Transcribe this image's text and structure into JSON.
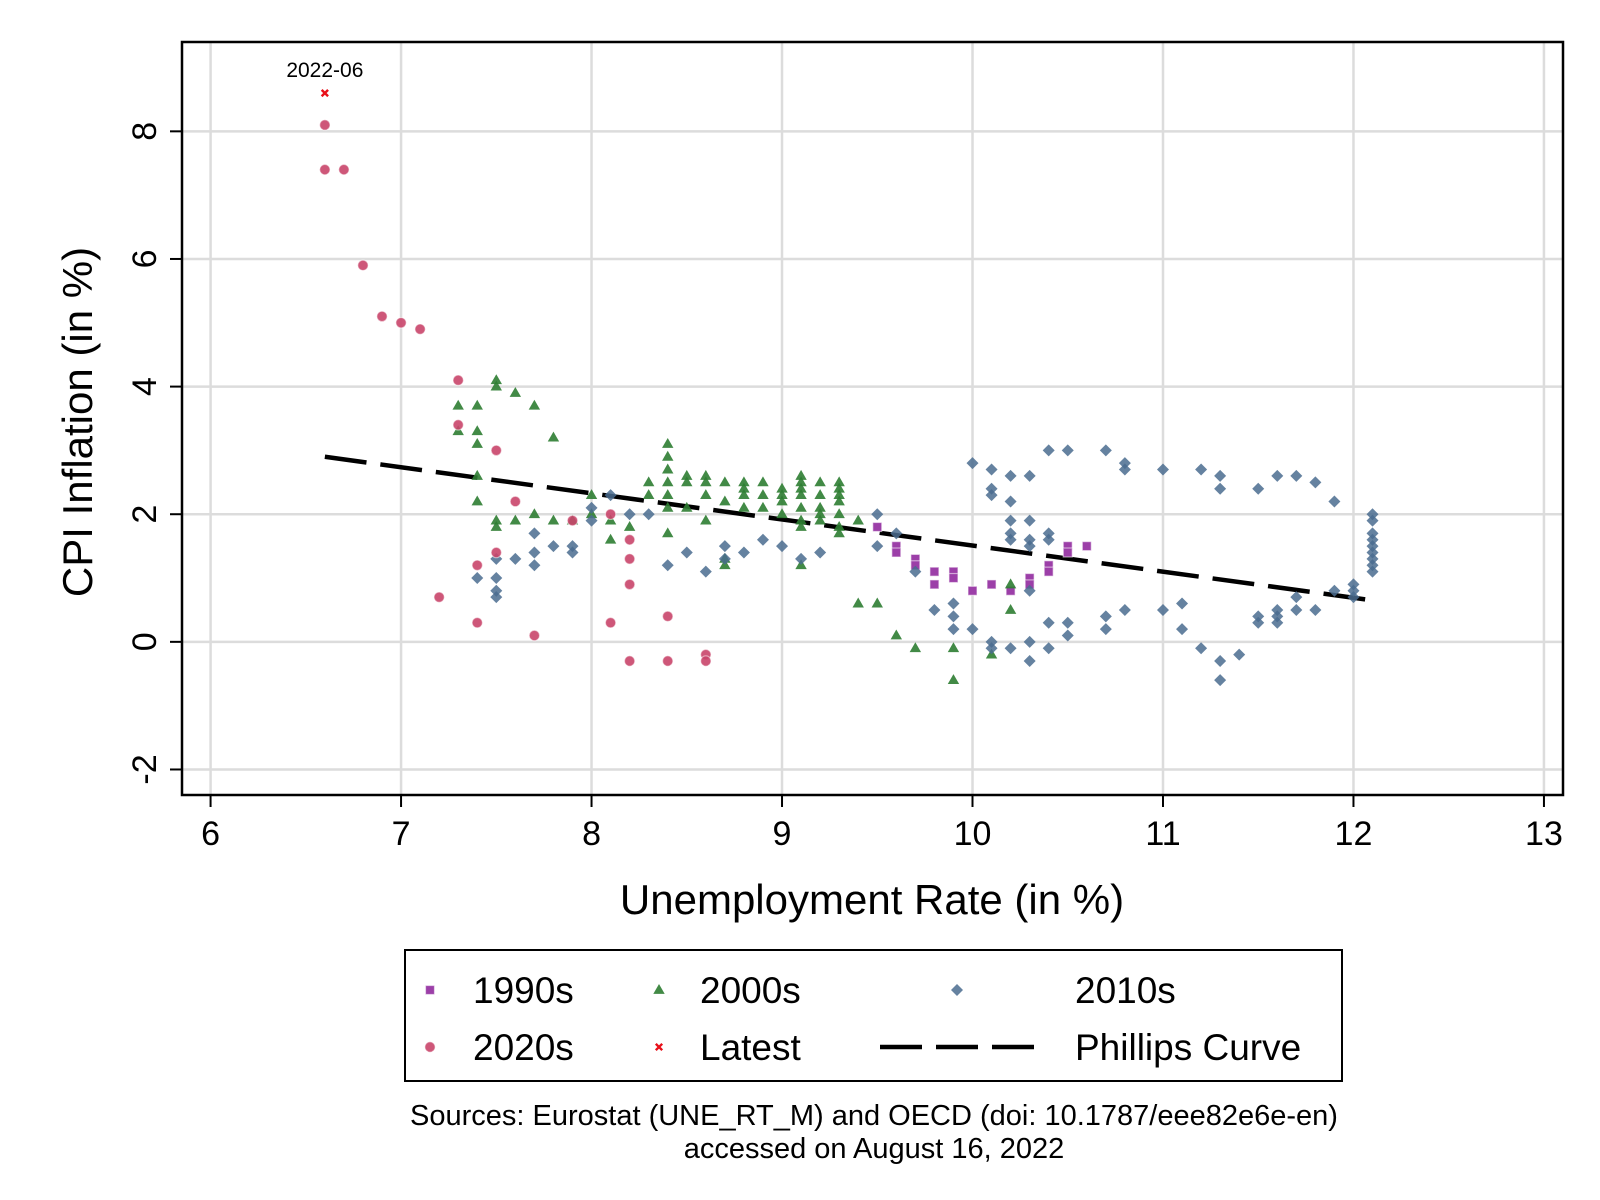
{
  "chart_data": {
    "type": "scatter",
    "title": "",
    "xlabel": "Unemployment Rate (in %)",
    "ylabel": "CPI Inflation (in %)",
    "xlim": [
      5.85,
      13.1
    ],
    "ylim": [
      -2.4,
      9.4
    ],
    "xticks": [
      6,
      7,
      8,
      9,
      10,
      11,
      12,
      13
    ],
    "yticks": [
      -2,
      0,
      2,
      4,
      6,
      8
    ],
    "grid": true,
    "legend": {
      "placement": "bottom",
      "columns": 3
    },
    "annotation": {
      "text": "2022-06",
      "x": 6.6,
      "y": 8.6
    },
    "source_line1": "Sources: Eurostat (UNE_RT_M) and OECD (doi: 10.1787/eee82e6e-en)",
    "source_line2": "accessed on August 16, 2022",
    "series": [
      {
        "name": "1990s",
        "marker": "square",
        "color": "#9c3fa8",
        "points": [
          [
            9.5,
            1.8
          ],
          [
            9.6,
            1.5
          ],
          [
            9.6,
            1.4
          ],
          [
            9.7,
            1.3
          ],
          [
            9.7,
            1.2
          ],
          [
            9.8,
            1.1
          ],
          [
            9.8,
            0.9
          ],
          [
            9.9,
            1.1
          ],
          [
            9.9,
            1.0
          ],
          [
            10.0,
            0.8
          ],
          [
            10.1,
            0.9
          ],
          [
            10.2,
            0.8
          ],
          [
            10.3,
            1.0
          ],
          [
            10.3,
            0.9
          ],
          [
            10.4,
            1.2
          ],
          [
            10.4,
            1.1
          ],
          [
            10.5,
            1.5
          ],
          [
            10.5,
            1.4
          ],
          [
            10.6,
            1.5
          ]
        ]
      },
      {
        "name": "2000s",
        "marker": "triangle",
        "color": "#2e7d32",
        "points": [
          [
            7.3,
            3.7
          ],
          [
            7.3,
            3.3
          ],
          [
            7.4,
            3.7
          ],
          [
            7.4,
            3.3
          ],
          [
            7.4,
            3.1
          ],
          [
            7.4,
            2.6
          ],
          [
            7.4,
            2.2
          ],
          [
            7.5,
            4.1
          ],
          [
            7.5,
            4.0
          ],
          [
            7.5,
            1.9
          ],
          [
            7.5,
            1.8
          ],
          [
            7.6,
            3.9
          ],
          [
            7.6,
            1.9
          ],
          [
            7.7,
            3.7
          ],
          [
            7.7,
            2.0
          ],
          [
            7.8,
            3.2
          ],
          [
            7.8,
            1.9
          ],
          [
            7.9,
            1.9
          ],
          [
            8.0,
            2.3
          ],
          [
            8.0,
            2.0
          ],
          [
            8.1,
            1.9
          ],
          [
            8.1,
            1.6
          ],
          [
            8.2,
            1.8
          ],
          [
            8.3,
            2.5
          ],
          [
            8.3,
            2.3
          ],
          [
            8.4,
            3.1
          ],
          [
            8.4,
            2.9
          ],
          [
            8.4,
            2.7
          ],
          [
            8.4,
            2.5
          ],
          [
            8.4,
            2.3
          ],
          [
            8.4,
            2.1
          ],
          [
            8.4,
            1.7
          ],
          [
            8.5,
            2.6
          ],
          [
            8.5,
            2.5
          ],
          [
            8.5,
            2.1
          ],
          [
            8.6,
            2.6
          ],
          [
            8.6,
            2.5
          ],
          [
            8.6,
            2.3
          ],
          [
            8.6,
            1.9
          ],
          [
            8.7,
            2.5
          ],
          [
            8.7,
            2.2
          ],
          [
            8.7,
            1.3
          ],
          [
            8.7,
            1.2
          ],
          [
            8.8,
            2.5
          ],
          [
            8.8,
            2.4
          ],
          [
            8.8,
            2.3
          ],
          [
            8.8,
            2.1
          ],
          [
            8.9,
            2.5
          ],
          [
            8.9,
            2.3
          ],
          [
            8.9,
            2.1
          ],
          [
            9.0,
            2.4
          ],
          [
            9.0,
            2.3
          ],
          [
            9.0,
            2.2
          ],
          [
            9.0,
            2.0
          ],
          [
            9.1,
            2.6
          ],
          [
            9.1,
            2.5
          ],
          [
            9.1,
            2.4
          ],
          [
            9.1,
            2.3
          ],
          [
            9.1,
            2.1
          ],
          [
            9.1,
            1.9
          ],
          [
            9.1,
            1.8
          ],
          [
            9.1,
            1.2
          ],
          [
            9.2,
            2.5
          ],
          [
            9.2,
            2.3
          ],
          [
            9.2,
            2.1
          ],
          [
            9.2,
            2.0
          ],
          [
            9.2,
            1.9
          ],
          [
            9.3,
            2.5
          ],
          [
            9.3,
            2.4
          ],
          [
            9.3,
            2.3
          ],
          [
            9.3,
            2.2
          ],
          [
            9.3,
            2.0
          ],
          [
            9.3,
            1.8
          ],
          [
            9.3,
            1.7
          ],
          [
            9.4,
            1.9
          ],
          [
            9.4,
            0.6
          ],
          [
            9.5,
            0.6
          ],
          [
            9.6,
            0.1
          ],
          [
            9.7,
            -0.1
          ],
          [
            9.9,
            -0.1
          ],
          [
            9.9,
            -0.6
          ],
          [
            10.1,
            -0.2
          ],
          [
            10.2,
            0.9
          ],
          [
            10.2,
            0.5
          ]
        ]
      },
      {
        "name": "2010s",
        "marker": "diamond",
        "color": "#4a6c8f",
        "points": [
          [
            7.4,
            1.0
          ],
          [
            7.5,
            1.3
          ],
          [
            7.5,
            1.0
          ],
          [
            7.5,
            0.8
          ],
          [
            7.5,
            0.7
          ],
          [
            7.6,
            1.3
          ],
          [
            7.7,
            1.7
          ],
          [
            7.7,
            1.4
          ],
          [
            7.7,
            1.2
          ],
          [
            7.8,
            1.5
          ],
          [
            7.9,
            1.5
          ],
          [
            7.9,
            1.4
          ],
          [
            8.0,
            2.1
          ],
          [
            8.0,
            1.9
          ],
          [
            8.1,
            2.3
          ],
          [
            8.2,
            2.0
          ],
          [
            8.3,
            2.0
          ],
          [
            8.4,
            1.2
          ],
          [
            8.5,
            1.4
          ],
          [
            8.6,
            1.1
          ],
          [
            8.7,
            1.5
          ],
          [
            8.7,
            1.3
          ],
          [
            8.8,
            1.4
          ],
          [
            8.9,
            1.6
          ],
          [
            9.0,
            1.5
          ],
          [
            9.1,
            1.3
          ],
          [
            9.2,
            1.4
          ],
          [
            9.5,
            2.0
          ],
          [
            9.5,
            1.5
          ],
          [
            9.6,
            1.7
          ],
          [
            9.7,
            1.1
          ],
          [
            9.8,
            0.5
          ],
          [
            9.9,
            0.6
          ],
          [
            9.9,
            0.4
          ],
          [
            9.9,
            0.2
          ],
          [
            10.0,
            0.2
          ],
          [
            10.0,
            2.8
          ],
          [
            10.1,
            2.7
          ],
          [
            10.1,
            2.4
          ],
          [
            10.1,
            2.3
          ],
          [
            10.1,
            0.0
          ],
          [
            10.1,
            -0.1
          ],
          [
            10.2,
            2.6
          ],
          [
            10.2,
            2.2
          ],
          [
            10.2,
            1.9
          ],
          [
            10.2,
            1.7
          ],
          [
            10.2,
            1.6
          ],
          [
            10.2,
            -0.1
          ],
          [
            10.3,
            2.6
          ],
          [
            10.3,
            1.9
          ],
          [
            10.3,
            1.6
          ],
          [
            10.3,
            1.5
          ],
          [
            10.3,
            0.8
          ],
          [
            10.3,
            0.0
          ],
          [
            10.3,
            -0.3
          ],
          [
            10.4,
            3.0
          ],
          [
            10.4,
            1.7
          ],
          [
            10.4,
            1.6
          ],
          [
            10.4,
            0.3
          ],
          [
            10.4,
            -0.1
          ],
          [
            10.5,
            3.0
          ],
          [
            10.5,
            0.3
          ],
          [
            10.5,
            0.1
          ],
          [
            10.7,
            3.0
          ],
          [
            10.7,
            0.4
          ],
          [
            10.7,
            0.2
          ],
          [
            10.8,
            2.8
          ],
          [
            10.8,
            2.7
          ],
          [
            10.8,
            0.5
          ],
          [
            11.0,
            2.7
          ],
          [
            11.0,
            0.5
          ],
          [
            11.1,
            0.6
          ],
          [
            11.1,
            0.2
          ],
          [
            11.2,
            2.7
          ],
          [
            11.2,
            -0.1
          ],
          [
            11.3,
            2.6
          ],
          [
            11.3,
            2.4
          ],
          [
            11.3,
            -0.3
          ],
          [
            11.3,
            -0.6
          ],
          [
            11.4,
            -0.2
          ],
          [
            11.5,
            2.4
          ],
          [
            11.5,
            0.4
          ],
          [
            11.5,
            0.3
          ],
          [
            11.6,
            2.6
          ],
          [
            11.6,
            0.5
          ],
          [
            11.6,
            0.4
          ],
          [
            11.6,
            0.3
          ],
          [
            11.7,
            2.6
          ],
          [
            11.7,
            0.7
          ],
          [
            11.7,
            0.5
          ],
          [
            11.8,
            2.5
          ],
          [
            11.8,
            0.5
          ],
          [
            11.9,
            2.2
          ],
          [
            11.9,
            0.8
          ],
          [
            12.0,
            0.9
          ],
          [
            12.0,
            0.8
          ],
          [
            12.0,
            0.7
          ],
          [
            12.1,
            2.0
          ],
          [
            12.1,
            1.9
          ],
          [
            12.1,
            1.7
          ],
          [
            12.1,
            1.6
          ],
          [
            12.1,
            1.5
          ],
          [
            12.1,
            1.4
          ],
          [
            12.1,
            1.3
          ],
          [
            12.1,
            1.2
          ],
          [
            12.1,
            1.1
          ]
        ]
      },
      {
        "name": "2020s",
        "marker": "circle",
        "color": "#c9456a",
        "points": [
          [
            6.6,
            8.1
          ],
          [
            6.6,
            7.4
          ],
          [
            6.7,
            7.4
          ],
          [
            6.8,
            5.9
          ],
          [
            6.9,
            5.1
          ],
          [
            7.0,
            5.0
          ],
          [
            7.1,
            4.9
          ],
          [
            7.2,
            0.7
          ],
          [
            7.3,
            4.1
          ],
          [
            7.3,
            3.4
          ],
          [
            7.4,
            1.2
          ],
          [
            7.4,
            0.3
          ],
          [
            7.5,
            3.0
          ],
          [
            7.5,
            1.4
          ],
          [
            7.6,
            2.2
          ],
          [
            7.7,
            0.1
          ],
          [
            7.9,
            1.9
          ],
          [
            8.1,
            2.0
          ],
          [
            8.1,
            0.3
          ],
          [
            8.2,
            1.6
          ],
          [
            8.2,
            1.3
          ],
          [
            8.2,
            0.9
          ],
          [
            8.2,
            -0.3
          ],
          [
            8.4,
            0.4
          ],
          [
            8.4,
            -0.3
          ],
          [
            8.6,
            -0.2
          ],
          [
            8.6,
            -0.3
          ]
        ]
      },
      {
        "name": "Latest",
        "marker": "x",
        "color": "#e8101a",
        "points": [
          [
            6.6,
            8.6
          ]
        ]
      }
    ],
    "fit_line": {
      "name": "Phillips Curve",
      "style": "long-dash",
      "color": "#000000",
      "x": [
        6.6,
        12.1
      ],
      "y": [
        2.9,
        0.65
      ]
    }
  }
}
